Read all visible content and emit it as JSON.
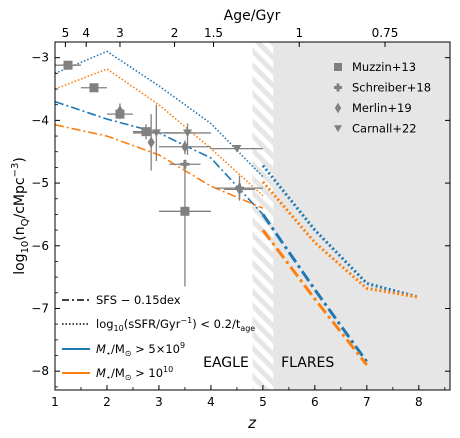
{
  "chart_data": {
    "type": "line",
    "xlabel": "z",
    "ylabel_main": "log",
    "ylabel_sub": "10",
    "ylabel_rest": "(n",
    "ylabel_q": "Q",
    "ylabel_unit": "/cMpc",
    "ylabel_exp": "−3",
    "ylabel_close": ")",
    "top_axis_label": "Age/Gyr",
    "xlim": [
      1,
      8.6
    ],
    "ylim": [
      -8.3,
      -2.75
    ],
    "x_ticks": [
      1,
      2,
      3,
      4,
      5,
      6,
      7,
      8
    ],
    "x_tick_labels": [
      "1",
      "2",
      "3",
      "4",
      "5",
      "6",
      "7",
      "8"
    ],
    "y_ticks": [
      -8,
      -7,
      -6,
      -5,
      -4,
      -3
    ],
    "y_tick_labels": [
      "−8",
      "−7",
      "−6",
      "−5",
      "−4",
      "−3"
    ],
    "top_ticks": [
      {
        "z": 1.2,
        "label": "5"
      },
      {
        "z": 1.6,
        "label": "4"
      },
      {
        "z": 2.25,
        "label": "3"
      },
      {
        "z": 3.3,
        "label": "2"
      },
      {
        "z": 4.05,
        "label": "1.5"
      },
      {
        "z": 5.7,
        "label": "1"
      },
      {
        "z": 7.35,
        "label": "0.75"
      }
    ],
    "regions": {
      "hatched": {
        "x0": 4.8,
        "x1": 5.2
      },
      "shaded": {
        "x0": 5.2,
        "x1": 8.6
      },
      "eagle_label": "EAGLE",
      "flares_label": "FLARES",
      "eagle_label_pos": [
        3.85,
        -7.93
      ],
      "flares_label_pos": [
        5.35,
        -7.93
      ]
    },
    "colors": {
      "blue": "#1f77b4",
      "orange": "#ff7f0e",
      "obs": "#808080",
      "shade": "#e6e6e6"
    },
    "series": [
      {
        "mass": "5e9",
        "kind": "sfs",
        "dataset": "EAGLE",
        "color": "#1f77b4",
        "x": [
          1,
          2,
          3,
          4,
          5
        ],
        "y": [
          -3.7,
          -3.98,
          -4.2,
          -4.6,
          -5.5
        ]
      },
      {
        "mass": "1e10",
        "kind": "sfs",
        "dataset": "EAGLE",
        "color": "#ff7f0e",
        "x": [
          1,
          2,
          3,
          4,
          5
        ],
        "y": [
          -4.07,
          -4.25,
          -4.55,
          -5.05,
          -5.4
        ]
      },
      {
        "mass": "5e9",
        "kind": "ssfr",
        "dataset": "EAGLE",
        "color": "#1f77b4",
        "x": [
          1,
          2,
          3,
          4,
          5
        ],
        "y": [
          -3.25,
          -2.9,
          -3.45,
          -4.05,
          -4.9
        ]
      },
      {
        "mass": "1e10",
        "kind": "ssfr",
        "dataset": "EAGLE",
        "color": "#ff7f0e",
        "x": [
          1,
          2,
          3,
          4,
          5
        ],
        "y": [
          -3.5,
          -3.18,
          -3.75,
          -4.45,
          -5.2
        ]
      },
      {
        "mass": "5e9",
        "kind": "sfs",
        "dataset": "FLARES",
        "color": "#1f77b4",
        "x": [
          5,
          6,
          7
        ],
        "y": [
          -5.5,
          -6.7,
          -7.85
        ]
      },
      {
        "mass": "1e10",
        "kind": "sfs",
        "dataset": "FLARES",
        "color": "#ff7f0e",
        "x": [
          5,
          6,
          7
        ],
        "y": [
          -5.75,
          -6.85,
          -7.9
        ]
      },
      {
        "mass": "5e9",
        "kind": "ssfr",
        "dataset": "FLARES",
        "color": "#1f77b4",
        "x": [
          5,
          6,
          7,
          8
        ],
        "y": [
          -4.72,
          -5.75,
          -6.6,
          -6.82
        ]
      },
      {
        "mass": "1e10",
        "kind": "ssfr",
        "dataset": "FLARES",
        "color": "#ff7f0e",
        "x": [
          5,
          6,
          7,
          8
        ],
        "y": [
          -4.98,
          -5.95,
          -6.68,
          -6.82
        ]
      }
    ],
    "observations": [
      {
        "name": "Muzzin+13",
        "marker": "square",
        "points": [
          {
            "x": 1.25,
            "y": -3.12,
            "xerr": [
              0.25,
              0.25
            ],
            "yerr": [
              0.05,
              0.05
            ]
          },
          {
            "x": 1.75,
            "y": -3.48,
            "xerr": [
              0.25,
              0.25
            ],
            "yerr": [
              0.05,
              0.05
            ]
          },
          {
            "x": 2.25,
            "y": -3.9,
            "xerr": [
              0.25,
              0.25
            ],
            "yerr": [
              0.08,
              0.08
            ]
          },
          {
            "x": 2.75,
            "y": -4.18,
            "xerr": [
              0.25,
              0.25
            ],
            "yerr": [
              0.12,
              0.12
            ]
          },
          {
            "x": 3.5,
            "y": -5.45,
            "xerr": [
              0.5,
              0.5
            ],
            "yerr": [
              1.2,
              0.7
            ]
          }
        ]
      },
      {
        "name": "Schreiber+18",
        "marker": "plus",
        "points": [
          {
            "x": 3.5,
            "y": -4.7,
            "xerr": [
              0.3,
              0.3
            ],
            "yerr": [
              0.05,
              0.05
            ]
          },
          {
            "x": 4.55,
            "y": -5.08,
            "xerr": [
              0.45,
              0.45
            ],
            "yerr": [
              0.2,
              0.2
            ]
          }
        ]
      },
      {
        "name": "Merlin+19",
        "marker": "diamond",
        "points": [
          {
            "x": 2.25,
            "y": -3.85,
            "xerr": [
              0,
              0
            ],
            "yerr": [
              0.12,
              0.12
            ]
          },
          {
            "x": 2.85,
            "y": -4.35,
            "xerr": [
              0,
              0
            ],
            "yerr": [
              0.45,
              0.45
            ]
          },
          {
            "x": 3.5,
            "y": -4.42,
            "xerr": [
              0.5,
              0.5
            ],
            "yerr": [
              0.12,
              0.1
            ]
          },
          {
            "x": 4.55,
            "y": -5.1,
            "xerr": [
              0.3,
              0.3
            ],
            "yerr": [
              0.12,
              0.12
            ]
          }
        ]
      },
      {
        "name": "Carnall+22",
        "marker": "triangle",
        "points": [
          {
            "x": 2.95,
            "y": -4.2,
            "xerr": [
              0.45,
              0.45
            ],
            "yerr": [
              0.45,
              0.45
            ]
          },
          {
            "x": 3.55,
            "y": -4.2,
            "xerr": [
              0.45,
              0.45
            ],
            "yerr": [
              0.35,
              0.15
            ]
          },
          {
            "x": 4.5,
            "y": -4.45,
            "xerr": [
              0.5,
              0.5
            ],
            "yerr": [
              0,
              0
            ]
          }
        ]
      }
    ],
    "legend_obs": {
      "placement": "top-right",
      "entries": [
        "Muzzin+13",
        "Schreiber+18",
        "Merlin+19",
        "Carnall+22"
      ]
    },
    "legend_lines": {
      "placement": "bottom-left",
      "sfs": {
        "pre": "SFS − 0.15dex"
      },
      "ssfr": {
        "pre": "log",
        "sub": "10",
        "mid": "(sSFR/Gyr",
        "sup": "−1",
        "post": ") < 0.2/t",
        "tsub": "age"
      },
      "m1": {
        "pre": "M",
        "star": "⋆",
        "mid": "/M",
        "sun": "⊙",
        "post": " > 5×10",
        "exp": "9"
      },
      "m2": {
        "pre": "M",
        "star": "⋆",
        "mid": "/M",
        "sun": "⊙",
        "post": " > 10",
        "exp": "10"
      }
    }
  }
}
